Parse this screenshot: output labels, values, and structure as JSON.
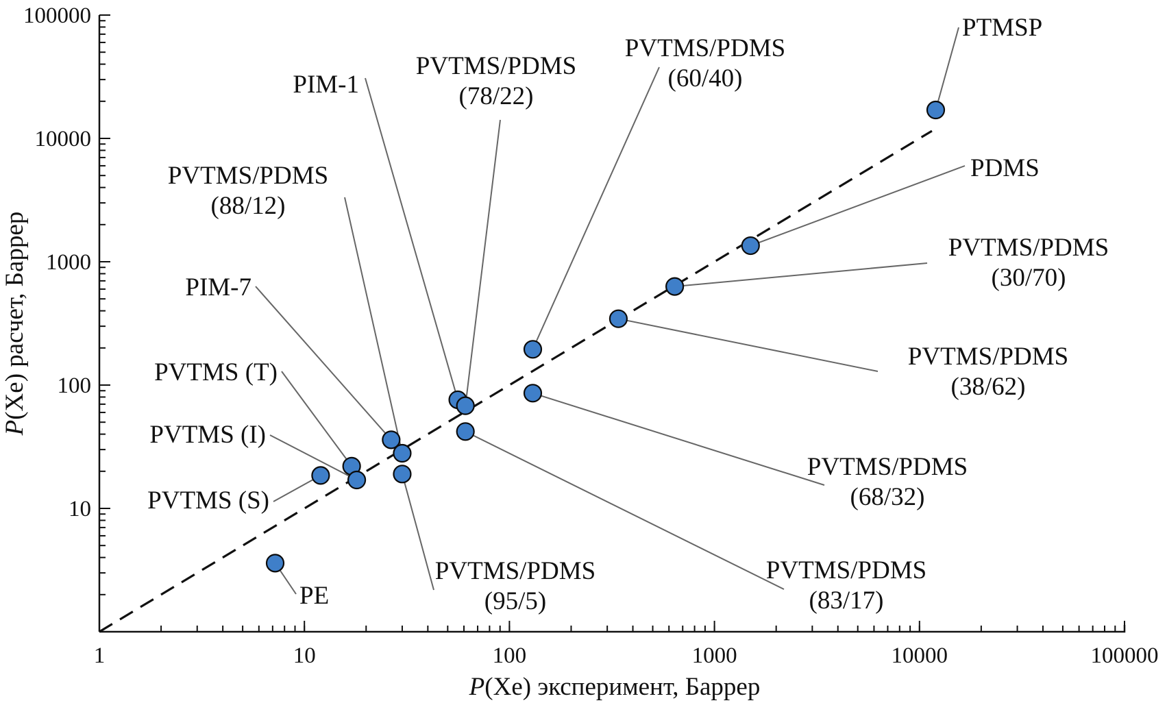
{
  "colors": {
    "marker_fill": "#3f7fc9",
    "marker_stroke": "#0b0b0b",
    "reference_line": "#111111",
    "leader": "#666666"
  },
  "chart_data": {
    "type": "scatter",
    "xscale": "log",
    "yscale": "log",
    "xlim": [
      1,
      100000
    ],
    "ylim": [
      1,
      100000
    ],
    "xlabel": {
      "italic": "P",
      "rest": "(Xe) эксперимент, Баррер"
    },
    "ylabel": {
      "italic": "P",
      "rest": "(Xe) расчет, Баррер"
    },
    "x_ticks": [
      "1",
      "10",
      "100",
      "1000",
      "10000",
      "100000"
    ],
    "y_ticks": [
      "10",
      "100",
      "1000",
      "10000",
      "100000"
    ],
    "reference_line": {
      "style": "dashed",
      "from": [
        1,
        1
      ],
      "to": [
        11500,
        11500
      ]
    },
    "points": [
      {
        "name": "PTMSP",
        "lines": [
          "PTMSP"
        ],
        "x": 12000,
        "y": 17000
      },
      {
        "name": "PDMS",
        "lines": [
          "PDMS"
        ],
        "x": 1500,
        "y": 1350
      },
      {
        "name": "PVTMS/PDMS (30/70)",
        "lines": [
          "PVTMS/PDMS",
          "(30/70)"
        ],
        "x": 640,
        "y": 630
      },
      {
        "name": "PVTMS/PDMS (38/62)",
        "lines": [
          "PVTMS/PDMS",
          "(38/62)"
        ],
        "x": 340,
        "y": 345
      },
      {
        "name": "PVTMS/PDMS (60/40)",
        "lines": [
          "PVTMS/PDMS",
          "(60/40)"
        ],
        "x": 130,
        "y": 195
      },
      {
        "name": "PVTMS/PDMS (68/32)",
        "lines": [
          "PVTMS/PDMS",
          "(68/32)"
        ],
        "x": 130,
        "y": 86
      },
      {
        "name": "PIM-1",
        "lines": [
          "PIM-1"
        ],
        "x": 56,
        "y": 76
      },
      {
        "name": "PVTMS/PDMS (78/22)",
        "lines": [
          "PVTMS/PDMS",
          "(78/22)"
        ],
        "x": 61,
        "y": 68
      },
      {
        "name": "PVTMS/PDMS (83/17)",
        "lines": [
          "PVTMS/PDMS",
          "(83/17)"
        ],
        "x": 61,
        "y": 42
      },
      {
        "name": "PIM-7",
        "lines": [
          "PIM-7"
        ],
        "x": 26.5,
        "y": 36
      },
      {
        "name": "PVTMS/PDMS (88/12)",
        "lines": [
          "PVTMS/PDMS",
          "(88/12)"
        ],
        "x": 30,
        "y": 28
      },
      {
        "name": "PVTMS/PDMS (95/5)",
        "lines": [
          "PVTMS/PDMS",
          "(95/5)"
        ],
        "x": 30,
        "y": 19
      },
      {
        "name": "PVTMS (T)",
        "lines": [
          "PVTMS (T)"
        ],
        "x": 17,
        "y": 22
      },
      {
        "name": "PVTMS (I)",
        "lines": [
          "PVTMS (I)"
        ],
        "x": 18,
        "y": 17
      },
      {
        "name": "PVTMS (S)",
        "lines": [
          "PVTMS (S)"
        ],
        "x": 12,
        "y": 18.5
      },
      {
        "name": "PE",
        "lines": [
          "PE"
        ],
        "x": 7.2,
        "y": 3.6
      }
    ]
  }
}
